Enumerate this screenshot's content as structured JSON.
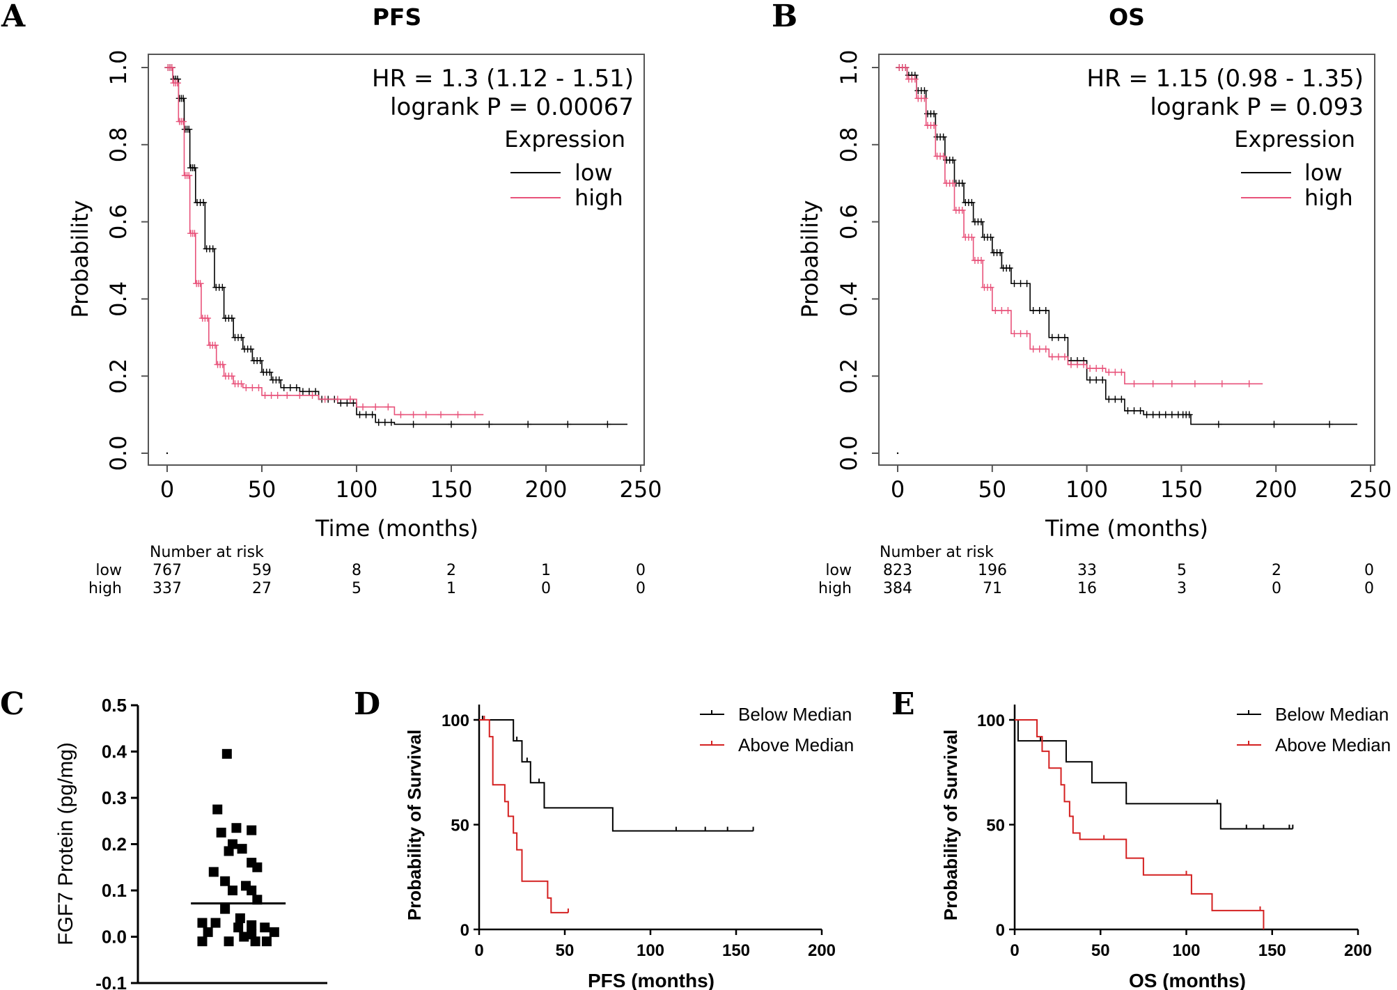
{
  "colors": {
    "low": "#000000",
    "high": "#e8527a",
    "below": "#000000",
    "above": "#d42020"
  },
  "panels": {
    "A": {
      "letter": "A",
      "title": "PFS",
      "hr": "HR = 1.3 (1.12 - 1.51)",
      "logrank": "logrank P = 0.00067",
      "legend_title": "Expression",
      "legend_low": "low",
      "legend_high": "high",
      "ylabel": "Probability",
      "xlabel": "Time (months)",
      "risk_title": "Number at risk",
      "risk_low_label": "low",
      "risk_high_label": "high",
      "risk_low": [
        "767",
        "59",
        "8",
        "2",
        "1",
        "0"
      ],
      "risk_high": [
        "337",
        "27",
        "5",
        "1",
        "0",
        "0"
      ]
    },
    "B": {
      "letter": "B",
      "title": "OS",
      "hr": "HR = 1.15 (0.98 - 1.35)",
      "logrank": "logrank P = 0.093",
      "legend_title": "Expression",
      "legend_low": "low",
      "legend_high": "high",
      "ylabel": "Probability",
      "xlabel": "Time (months)",
      "risk_title": "Number at risk",
      "risk_low_label": "low",
      "risk_high_label": "high",
      "risk_low": [
        "823",
        "196",
        "33",
        "5",
        "2",
        "0"
      ],
      "risk_high": [
        "384",
        "71",
        "16",
        "3",
        "0",
        "0"
      ]
    },
    "C": {
      "letter": "C",
      "ylabel": "FGF7 Protein (pg/mg)"
    },
    "D": {
      "letter": "D",
      "ylabel": "Probability of Survival",
      "xlabel": "PFS  (months)",
      "legend_below": "Below Median",
      "legend_above": "Above Median"
    },
    "E": {
      "letter": "E",
      "ylabel": "Probability of Survival",
      "xlabel": "OS (months)",
      "legend_below": "Below Median",
      "legend_above": "Above Median"
    }
  },
  "chart_data": [
    {
      "id": "A",
      "type": "line",
      "title": "PFS",
      "xlabel": "Time (months)",
      "ylabel": "Probability",
      "xlim": [
        0,
        250
      ],
      "ylim": [
        0,
        1
      ],
      "x_ticks": [
        "0",
        "50",
        "100",
        "150",
        "200",
        "250"
      ],
      "y_ticks": [
        "0.0",
        "0.2",
        "0.4",
        "0.6",
        "0.8",
        "1.0"
      ],
      "series": [
        {
          "name": "low",
          "color": "#000000",
          "x": [
            0,
            3,
            6,
            9,
            12,
            15,
            20,
            25,
            30,
            35,
            40,
            45,
            50,
            55,
            60,
            70,
            80,
            90,
            100,
            110,
            120,
            180,
            243
          ],
          "y": [
            1.0,
            0.97,
            0.92,
            0.84,
            0.74,
            0.65,
            0.53,
            0.43,
            0.35,
            0.3,
            0.27,
            0.24,
            0.21,
            0.19,
            0.17,
            0.16,
            0.14,
            0.13,
            0.1,
            0.08,
            0.075,
            0.075,
            0.075
          ]
        },
        {
          "name": "high",
          "color": "#e8527a",
          "x": [
            0,
            3,
            6,
            9,
            12,
            15,
            18,
            22,
            26,
            30,
            35,
            40,
            50,
            60,
            80,
            100,
            120,
            140,
            167
          ],
          "y": [
            1.0,
            0.96,
            0.86,
            0.72,
            0.57,
            0.44,
            0.35,
            0.28,
            0.23,
            0.2,
            0.18,
            0.17,
            0.15,
            0.15,
            0.14,
            0.12,
            0.1,
            0.1,
            0.1
          ]
        }
      ],
      "annotations": [
        "HR = 1.3 (1.12 - 1.51)",
        "logrank P = 0.00067"
      ],
      "legend": "top-right"
    },
    {
      "id": "B",
      "type": "line",
      "title": "OS",
      "xlabel": "Time (months)",
      "ylabel": "Probability",
      "xlim": [
        0,
        250
      ],
      "ylim": [
        0,
        1
      ],
      "x_ticks": [
        "0",
        "50",
        "100",
        "150",
        "200",
        "250"
      ],
      "y_ticks": [
        "0.0",
        "0.2",
        "0.4",
        "0.6",
        "0.8",
        "1.0"
      ],
      "series": [
        {
          "name": "low",
          "color": "#000000",
          "x": [
            0,
            5,
            10,
            15,
            20,
            25,
            30,
            35,
            40,
            45,
            50,
            55,
            60,
            70,
            80,
            90,
            100,
            110,
            120,
            130,
            140,
            150,
            155,
            243
          ],
          "y": [
            1.0,
            0.98,
            0.94,
            0.88,
            0.82,
            0.76,
            0.7,
            0.65,
            0.6,
            0.56,
            0.52,
            0.48,
            0.44,
            0.37,
            0.3,
            0.24,
            0.19,
            0.14,
            0.11,
            0.1,
            0.1,
            0.1,
            0.075,
            0.075
          ]
        },
        {
          "name": "high",
          "color": "#e8527a",
          "x": [
            0,
            5,
            10,
            15,
            20,
            25,
            30,
            35,
            40,
            45,
            50,
            60,
            70,
            80,
            90,
            100,
            110,
            120,
            150,
            193
          ],
          "y": [
            1.0,
            0.97,
            0.92,
            0.85,
            0.77,
            0.7,
            0.63,
            0.56,
            0.5,
            0.43,
            0.37,
            0.31,
            0.27,
            0.25,
            0.23,
            0.22,
            0.21,
            0.18,
            0.18,
            0.18
          ]
        }
      ],
      "annotations": [
        "HR = 1.15 (0.98 - 1.35)",
        "logrank P = 0.093"
      ],
      "legend": "top-right"
    },
    {
      "id": "C",
      "type": "scatter",
      "ylabel": "FGF7 Protein (pg/mg)",
      "ylim": [
        -0.1,
        0.5
      ],
      "y_ticks": [
        "-0.1",
        "0.0",
        "0.1",
        "0.2",
        "0.3",
        "0.4",
        "0.5"
      ],
      "x": [
        0.47,
        0.42,
        0.52,
        0.44,
        0.6,
        0.5,
        0.55,
        0.48,
        0.6,
        0.63,
        0.4,
        0.46,
        0.57,
        0.6,
        0.5,
        0.63,
        0.46,
        0.54,
        0.6,
        0.53,
        0.6,
        0.67,
        0.72,
        0.68,
        0.62,
        0.56,
        0.34,
        0.41,
        0.37,
        0.34,
        0.48
      ],
      "values": [
        0.395,
        0.275,
        0.235,
        0.225,
        0.23,
        0.2,
        0.19,
        0.185,
        0.16,
        0.15,
        0.14,
        0.12,
        0.11,
        0.1,
        0.1,
        0.08,
        0.06,
        0.04,
        0.025,
        0.02,
        0.005,
        0.02,
        0.01,
        -0.01,
        -0.01,
        0.0,
        0.03,
        0.03,
        0.01,
        -0.01,
        -0.01
      ],
      "mean": 0.072
    },
    {
      "id": "D",
      "type": "line",
      "xlabel": "PFS  (months)",
      "ylabel": "Probability of Survival",
      "xlim": [
        0,
        200
      ],
      "ylim": [
        0,
        100
      ],
      "x_ticks": [
        "0",
        "50",
        "100",
        "150",
        "200"
      ],
      "y_ticks": [
        "0",
        "50",
        "100"
      ],
      "series": [
        {
          "name": "Below Median",
          "color": "#000000",
          "x": [
            0,
            2,
            20,
            22,
            25,
            28,
            30,
            35,
            38,
            78,
            115,
            132,
            145,
            160
          ],
          "y": [
            100,
            100,
            90,
            90,
            80,
            80,
            70,
            70,
            58,
            47,
            47,
            47,
            47,
            47
          ]
        },
        {
          "name": "Above Median",
          "color": "#d42020",
          "x": [
            0,
            3,
            6,
            8,
            15,
            17,
            20,
            22,
            25,
            40,
            42,
            52
          ],
          "y": [
            100,
            100,
            92,
            69,
            61,
            54,
            46,
            38,
            23,
            15,
            8,
            8
          ]
        }
      ],
      "legend": "top-right"
    },
    {
      "id": "E",
      "type": "line",
      "xlabel": "OS (months)",
      "ylabel": "Probability of Survival",
      "xlim": [
        0,
        200
      ],
      "ylim": [
        0,
        100
      ],
      "x_ticks": [
        "0",
        "50",
        "100",
        "150",
        "200"
      ],
      "y_ticks": [
        "0",
        "50",
        "100"
      ],
      "series": [
        {
          "name": "Below Median",
          "color": "#000000",
          "x": [
            0,
            2,
            15,
            30,
            45,
            65,
            118,
            120,
            135,
            145,
            160,
            162
          ],
          "y": [
            100,
            90,
            90,
            80,
            70,
            60,
            60,
            48,
            48,
            48,
            48,
            48
          ]
        },
        {
          "name": "Above Median",
          "color": "#d42020",
          "x": [
            0,
            13,
            16,
            20,
            27,
            29,
            32,
            34,
            38,
            52,
            65,
            75,
            100,
            103,
            115,
            143,
            145
          ],
          "y": [
            100,
            92,
            85,
            77,
            69,
            61,
            54,
            46,
            43,
            43,
            34,
            26,
            26,
            17,
            9,
            9,
            0
          ]
        }
      ],
      "legend": "top-right"
    }
  ]
}
